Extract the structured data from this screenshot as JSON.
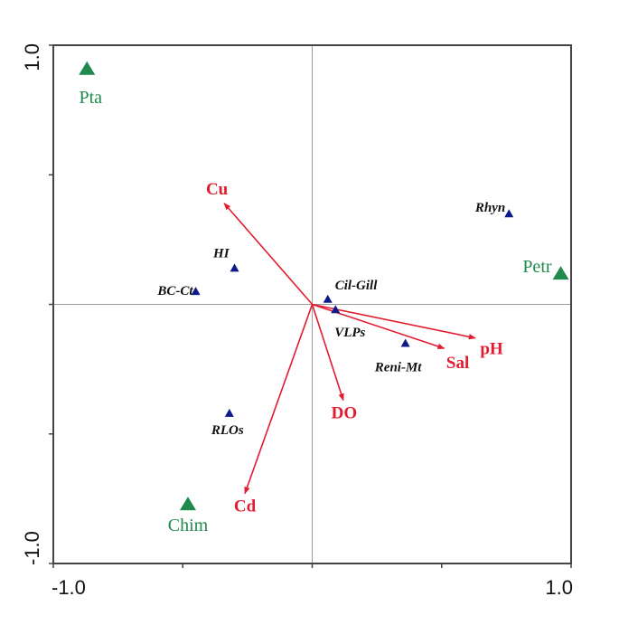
{
  "chart_data": {
    "type": "scatter",
    "subtype": "ordination-biplot",
    "title": "",
    "xlabel": "",
    "ylabel": "",
    "xlim": [
      -1.0,
      1.0
    ],
    "ylim": [
      -1.0,
      1.0
    ],
    "x_tick_labels": [
      "-1.0",
      "1.0"
    ],
    "y_tick_labels": [
      "1.0",
      "-1.0"
    ],
    "x_ticks": [
      -1.0,
      -0.5,
      0,
      0.5,
      1.0
    ],
    "y_ticks": [
      -1.0,
      -0.5,
      0,
      0.5,
      1.0
    ],
    "grid": false,
    "zero_lines": true,
    "colors": {
      "sites": "#1f8a4c",
      "species": "#0f1a8a",
      "env_arrows": "#e31b2e",
      "axis": "#444444",
      "zero_line": "#999999"
    },
    "series": [
      {
        "name": "sites",
        "marker": "triangle-large",
        "points": [
          {
            "label": "Pta",
            "x": -0.87,
            "y": 0.91
          },
          {
            "label": "Petr",
            "x": 0.96,
            "y": 0.12
          },
          {
            "label": "Chim",
            "x": -0.48,
            "y": -0.77
          }
        ]
      },
      {
        "name": "species",
        "marker": "triangle-small",
        "points": [
          {
            "label": "Rhyn",
            "x": 0.76,
            "y": 0.35
          },
          {
            "label": "HI",
            "x": -0.3,
            "y": 0.14
          },
          {
            "label": "BC-Ct",
            "x": -0.45,
            "y": 0.05
          },
          {
            "label": "Cil-Gill",
            "x": 0.06,
            "y": 0.02
          },
          {
            "label": "VLPs",
            "x": 0.09,
            "y": -0.02
          },
          {
            "label": "Reni-Mt",
            "x": 0.36,
            "y": -0.15
          },
          {
            "label": "RLOs",
            "x": -0.32,
            "y": -0.42
          }
        ]
      },
      {
        "name": "environmental-variables",
        "marker": "arrow",
        "points": [
          {
            "label": "Cu",
            "x": -0.34,
            "y": 0.39
          },
          {
            "label": "Cd",
            "x": -0.26,
            "y": -0.73
          },
          {
            "label": "DO",
            "x": 0.12,
            "y": -0.37
          },
          {
            "label": "Sal",
            "x": 0.51,
            "y": -0.17
          },
          {
            "label": "pH",
            "x": 0.63,
            "y": -0.13
          }
        ]
      }
    ]
  }
}
